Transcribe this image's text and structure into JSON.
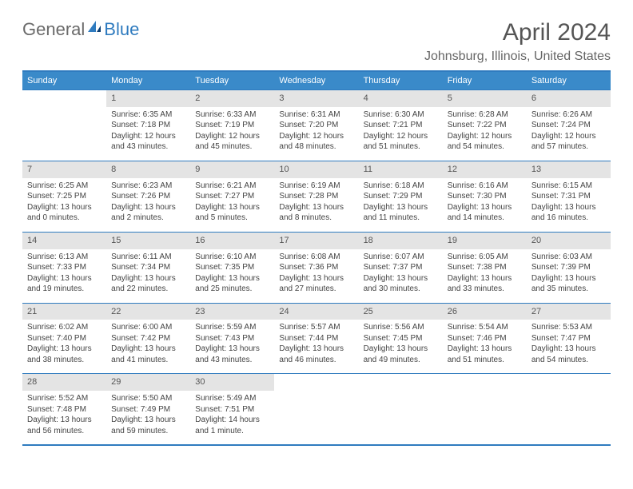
{
  "brand": {
    "part1": "General",
    "part2": "Blue"
  },
  "title": "April 2024",
  "location": "Johnsburg, Illinois, United States",
  "colors": {
    "header_bg": "#3a8ac9",
    "border": "#2f7bbf",
    "daynum_bg": "#e4e4e4"
  },
  "weekdays": [
    "Sunday",
    "Monday",
    "Tuesday",
    "Wednesday",
    "Thursday",
    "Friday",
    "Saturday"
  ],
  "start_offset": 1,
  "days": [
    {
      "n": "1",
      "sr": "Sunrise: 6:35 AM",
      "ss": "Sunset: 7:18 PM",
      "d1": "Daylight: 12 hours",
      "d2": "and 43 minutes."
    },
    {
      "n": "2",
      "sr": "Sunrise: 6:33 AM",
      "ss": "Sunset: 7:19 PM",
      "d1": "Daylight: 12 hours",
      "d2": "and 45 minutes."
    },
    {
      "n": "3",
      "sr": "Sunrise: 6:31 AM",
      "ss": "Sunset: 7:20 PM",
      "d1": "Daylight: 12 hours",
      "d2": "and 48 minutes."
    },
    {
      "n": "4",
      "sr": "Sunrise: 6:30 AM",
      "ss": "Sunset: 7:21 PM",
      "d1": "Daylight: 12 hours",
      "d2": "and 51 minutes."
    },
    {
      "n": "5",
      "sr": "Sunrise: 6:28 AM",
      "ss": "Sunset: 7:22 PM",
      "d1": "Daylight: 12 hours",
      "d2": "and 54 minutes."
    },
    {
      "n": "6",
      "sr": "Sunrise: 6:26 AM",
      "ss": "Sunset: 7:24 PM",
      "d1": "Daylight: 12 hours",
      "d2": "and 57 minutes."
    },
    {
      "n": "7",
      "sr": "Sunrise: 6:25 AM",
      "ss": "Sunset: 7:25 PM",
      "d1": "Daylight: 13 hours",
      "d2": "and 0 minutes."
    },
    {
      "n": "8",
      "sr": "Sunrise: 6:23 AM",
      "ss": "Sunset: 7:26 PM",
      "d1": "Daylight: 13 hours",
      "d2": "and 2 minutes."
    },
    {
      "n": "9",
      "sr": "Sunrise: 6:21 AM",
      "ss": "Sunset: 7:27 PM",
      "d1": "Daylight: 13 hours",
      "d2": "and 5 minutes."
    },
    {
      "n": "10",
      "sr": "Sunrise: 6:19 AM",
      "ss": "Sunset: 7:28 PM",
      "d1": "Daylight: 13 hours",
      "d2": "and 8 minutes."
    },
    {
      "n": "11",
      "sr": "Sunrise: 6:18 AM",
      "ss": "Sunset: 7:29 PM",
      "d1": "Daylight: 13 hours",
      "d2": "and 11 minutes."
    },
    {
      "n": "12",
      "sr": "Sunrise: 6:16 AM",
      "ss": "Sunset: 7:30 PM",
      "d1": "Daylight: 13 hours",
      "d2": "and 14 minutes."
    },
    {
      "n": "13",
      "sr": "Sunrise: 6:15 AM",
      "ss": "Sunset: 7:31 PM",
      "d1": "Daylight: 13 hours",
      "d2": "and 16 minutes."
    },
    {
      "n": "14",
      "sr": "Sunrise: 6:13 AM",
      "ss": "Sunset: 7:33 PM",
      "d1": "Daylight: 13 hours",
      "d2": "and 19 minutes."
    },
    {
      "n": "15",
      "sr": "Sunrise: 6:11 AM",
      "ss": "Sunset: 7:34 PM",
      "d1": "Daylight: 13 hours",
      "d2": "and 22 minutes."
    },
    {
      "n": "16",
      "sr": "Sunrise: 6:10 AM",
      "ss": "Sunset: 7:35 PM",
      "d1": "Daylight: 13 hours",
      "d2": "and 25 minutes."
    },
    {
      "n": "17",
      "sr": "Sunrise: 6:08 AM",
      "ss": "Sunset: 7:36 PM",
      "d1": "Daylight: 13 hours",
      "d2": "and 27 minutes."
    },
    {
      "n": "18",
      "sr": "Sunrise: 6:07 AM",
      "ss": "Sunset: 7:37 PM",
      "d1": "Daylight: 13 hours",
      "d2": "and 30 minutes."
    },
    {
      "n": "19",
      "sr": "Sunrise: 6:05 AM",
      "ss": "Sunset: 7:38 PM",
      "d1": "Daylight: 13 hours",
      "d2": "and 33 minutes."
    },
    {
      "n": "20",
      "sr": "Sunrise: 6:03 AM",
      "ss": "Sunset: 7:39 PM",
      "d1": "Daylight: 13 hours",
      "d2": "and 35 minutes."
    },
    {
      "n": "21",
      "sr": "Sunrise: 6:02 AM",
      "ss": "Sunset: 7:40 PM",
      "d1": "Daylight: 13 hours",
      "d2": "and 38 minutes."
    },
    {
      "n": "22",
      "sr": "Sunrise: 6:00 AM",
      "ss": "Sunset: 7:42 PM",
      "d1": "Daylight: 13 hours",
      "d2": "and 41 minutes."
    },
    {
      "n": "23",
      "sr": "Sunrise: 5:59 AM",
      "ss": "Sunset: 7:43 PM",
      "d1": "Daylight: 13 hours",
      "d2": "and 43 minutes."
    },
    {
      "n": "24",
      "sr": "Sunrise: 5:57 AM",
      "ss": "Sunset: 7:44 PM",
      "d1": "Daylight: 13 hours",
      "d2": "and 46 minutes."
    },
    {
      "n": "25",
      "sr": "Sunrise: 5:56 AM",
      "ss": "Sunset: 7:45 PM",
      "d1": "Daylight: 13 hours",
      "d2": "and 49 minutes."
    },
    {
      "n": "26",
      "sr": "Sunrise: 5:54 AM",
      "ss": "Sunset: 7:46 PM",
      "d1": "Daylight: 13 hours",
      "d2": "and 51 minutes."
    },
    {
      "n": "27",
      "sr": "Sunrise: 5:53 AM",
      "ss": "Sunset: 7:47 PM",
      "d1": "Daylight: 13 hours",
      "d2": "and 54 minutes."
    },
    {
      "n": "28",
      "sr": "Sunrise: 5:52 AM",
      "ss": "Sunset: 7:48 PM",
      "d1": "Daylight: 13 hours",
      "d2": "and 56 minutes."
    },
    {
      "n": "29",
      "sr": "Sunrise: 5:50 AM",
      "ss": "Sunset: 7:49 PM",
      "d1": "Daylight: 13 hours",
      "d2": "and 59 minutes."
    },
    {
      "n": "30",
      "sr": "Sunrise: 5:49 AM",
      "ss": "Sunset: 7:51 PM",
      "d1": "Daylight: 14 hours",
      "d2": "and 1 minute."
    }
  ]
}
